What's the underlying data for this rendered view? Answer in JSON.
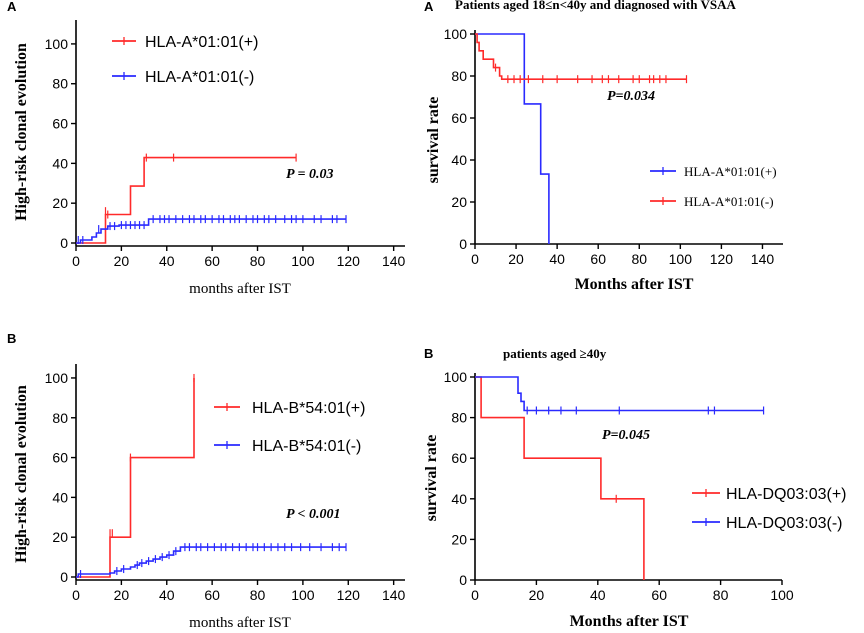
{
  "chart_data": [
    {
      "type": "line",
      "subtype": "step",
      "panel_label": "A",
      "title": "",
      "xlabel": "months after IST",
      "ylabel": "High-risk clonal evolution",
      "xlim": [
        0,
        145
      ],
      "ylim": [
        0,
        110
      ],
      "xticks": [
        0,
        20,
        40,
        60,
        80,
        100,
        120,
        140
      ],
      "yticks": [
        0,
        20,
        40,
        60,
        80,
        100
      ],
      "legend_position": "top-right",
      "annotation": "P = 0.03",
      "series": [
        {
          "name": "HLA-A*01:01(+)",
          "color": "#ff2a2a",
          "steps": [
            [
              0,
              0
            ],
            [
              13,
              14.3
            ],
            [
              24,
              28.6
            ],
            [
              30,
              42.9
            ],
            [
              97,
              42.9
            ]
          ],
          "censored": [
            [
              13,
              16
            ],
            [
              14,
              14.3
            ],
            [
              31,
              42.9
            ],
            [
              43,
              42.9
            ],
            [
              97,
              42.9
            ]
          ]
        },
        {
          "name": "HLA-A*01:01(-)",
          "color": "#2a2aff",
          "steps": [
            [
              0,
              0
            ],
            [
              2,
              1.5
            ],
            [
              7,
              3
            ],
            [
              9,
              5
            ],
            [
              11,
              7
            ],
            [
              14,
              8.5
            ],
            [
              19,
              9
            ],
            [
              32,
              12
            ],
            [
              119,
              12
            ]
          ],
          "censored": [
            [
              1,
              1.5
            ],
            [
              3,
              1.5
            ],
            [
              10,
              7
            ],
            [
              15,
              8.5
            ],
            [
              17,
              8.5
            ],
            [
              20,
              9
            ],
            [
              22,
              9
            ],
            [
              24,
              9
            ],
            [
              26,
              9
            ],
            [
              28,
              9
            ],
            [
              30,
              9
            ],
            [
              34,
              12
            ],
            [
              37,
              12
            ],
            [
              39,
              12
            ],
            [
              41,
              12
            ],
            [
              44,
              12
            ],
            [
              47,
              12
            ],
            [
              50,
              12
            ],
            [
              52,
              12
            ],
            [
              55,
              12
            ],
            [
              57,
              12
            ],
            [
              60,
              12
            ],
            [
              63,
              12
            ],
            [
              65,
              12
            ],
            [
              68,
              12
            ],
            [
              70,
              12
            ],
            [
              72,
              12
            ],
            [
              75,
              12
            ],
            [
              78,
              12
            ],
            [
              80,
              12
            ],
            [
              83,
              12
            ],
            [
              85,
              12
            ],
            [
              88,
              12
            ],
            [
              92,
              12
            ],
            [
              95,
              12
            ],
            [
              97,
              12
            ],
            [
              100,
              12
            ],
            [
              105,
              12
            ],
            [
              108,
              12
            ],
            [
              113,
              12
            ],
            [
              115,
              12
            ],
            [
              119,
              12
            ]
          ]
        }
      ]
    },
    {
      "type": "line",
      "subtype": "step",
      "panel_label": "A",
      "title": "Patients aged  18≤n<40y and diagnosed with VSAA",
      "xlabel": "Months after IST",
      "ylabel": "survival rate",
      "xlim": [
        0,
        150
      ],
      "ylim": [
        0,
        100
      ],
      "xticks": [
        0,
        20,
        40,
        60,
        80,
        100,
        120,
        140
      ],
      "yticks": [
        0,
        20,
        40,
        60,
        80,
        100
      ],
      "legend_position": "center-right",
      "annotation": "P=0.034",
      "series": [
        {
          "name": "HLA-A*01:01(+)",
          "color": "#2a2aff",
          "steps": [
            [
              0,
              100
            ],
            [
              24,
              66.7
            ],
            [
              32,
              33.3
            ],
            [
              36,
              0
            ]
          ],
          "censored": []
        },
        {
          "name": "HLA-A*01:01(-)",
          "color": "#ff2a2a",
          "steps": [
            [
              0,
              100
            ],
            [
              1,
              96
            ],
            [
              2,
              92
            ],
            [
              4,
              88
            ],
            [
              9,
              84
            ],
            [
              12,
              80
            ],
            [
              13,
              78.5
            ],
            [
              103,
              78.5
            ]
          ],
          "censored": [
            [
              10,
              84
            ],
            [
              16,
              78.5
            ],
            [
              19,
              78.5
            ],
            [
              22,
              78.5
            ],
            [
              26,
              78.5
            ],
            [
              33,
              78.5
            ],
            [
              40,
              78.5
            ],
            [
              50,
              78.5
            ],
            [
              57,
              78.5
            ],
            [
              62,
              78.5
            ],
            [
              65,
              78.5
            ],
            [
              70,
              78.5
            ],
            [
              77,
              78.5
            ],
            [
              80,
              78.5
            ],
            [
              85,
              78.5
            ],
            [
              87,
              78.5
            ],
            [
              90,
              78.5
            ],
            [
              93,
              78.5
            ],
            [
              103,
              78.5
            ]
          ]
        }
      ]
    },
    {
      "type": "line",
      "subtype": "step",
      "panel_label": "B",
      "title": "",
      "xlabel": "months after IST",
      "ylabel": "High-risk clonal evolution",
      "xlim": [
        0,
        145
      ],
      "ylim": [
        0,
        105
      ],
      "xticks": [
        0,
        20,
        40,
        60,
        80,
        100,
        120,
        140
      ],
      "yticks": [
        0,
        20,
        40,
        60,
        80,
        100
      ],
      "legend_position": "center-right",
      "annotation": "P < 0.001",
      "series": [
        {
          "name": "HLA-B*54:01(+)",
          "color": "#ff2a2a",
          "steps": [
            [
              0,
              0
            ],
            [
              15,
              20
            ],
            [
              24,
              60
            ],
            [
              52,
              100
            ]
          ],
          "censored": [
            [
              15,
              22
            ],
            [
              16,
              22
            ],
            [
              24,
              60
            ],
            [
              52,
              100
            ]
          ]
        },
        {
          "name": "HLA-B*54:01(-)",
          "color": "#2a2aff",
          "steps": [
            [
              0,
              0
            ],
            [
              1,
              1.5
            ],
            [
              4,
              1.5
            ],
            [
              15,
              2
            ],
            [
              17,
              3
            ],
            [
              20,
              4
            ],
            [
              24,
              5
            ],
            [
              26,
              6
            ],
            [
              28,
              7
            ],
            [
              31,
              8
            ],
            [
              34,
              9
            ],
            [
              37,
              10
            ],
            [
              40,
              11
            ],
            [
              43,
              13
            ],
            [
              46,
              15
            ],
            [
              119,
              15
            ]
          ],
          "censored": [
            [
              2,
              1.5
            ],
            [
              18,
              3
            ],
            [
              21,
              4
            ],
            [
              27,
              6
            ],
            [
              29,
              7
            ],
            [
              32,
              8
            ],
            [
              35,
              9
            ],
            [
              38,
              10
            ],
            [
              41,
              11
            ],
            [
              44,
              13
            ],
            [
              48,
              15
            ],
            [
              50,
              15
            ],
            [
              53,
              15
            ],
            [
              55,
              15
            ],
            [
              58,
              15
            ],
            [
              61,
              15
            ],
            [
              64,
              15
            ],
            [
              66,
              15
            ],
            [
              69,
              15
            ],
            [
              72,
              15
            ],
            [
              75,
              15
            ],
            [
              78,
              15
            ],
            [
              80,
              15
            ],
            [
              83,
              15
            ],
            [
              86,
              15
            ],
            [
              89,
              15
            ],
            [
              92,
              15
            ],
            [
              95,
              15
            ],
            [
              99,
              15
            ],
            [
              103,
              15
            ],
            [
              108,
              15
            ],
            [
              113,
              15
            ],
            [
              116,
              15
            ],
            [
              119,
              15
            ]
          ]
        }
      ]
    },
    {
      "type": "line",
      "subtype": "step",
      "panel_label": "B",
      "title": "patients aged ≥40y",
      "xlabel": "Months after IST",
      "ylabel": "survival rate",
      "xlim": [
        0,
        100
      ],
      "ylim": [
        0,
        100
      ],
      "xticks": [
        0,
        20,
        40,
        60,
        80,
        100
      ],
      "yticks": [
        0,
        20,
        40,
        60,
        80,
        100
      ],
      "legend_position": "bottom-right",
      "annotation": "P=0.045",
      "series": [
        {
          "name": "HLA-DQ03:03(+)",
          "color": "#ff2a2a",
          "steps": [
            [
              0,
              100
            ],
            [
              2,
              80
            ],
            [
              16,
              60
            ],
            [
              41,
              40
            ],
            [
              55,
              0
            ]
          ],
          "censored": [
            [
              46,
              40
            ]
          ]
        },
        {
          "name": "HLA-DQ03:03(-)",
          "color": "#2a2aff",
          "steps": [
            [
              0,
              100
            ],
            [
              14,
              92
            ],
            [
              15,
              88
            ],
            [
              16,
              83.5
            ],
            [
              94,
              83.5
            ]
          ],
          "censored": [
            [
              17,
              83.5
            ],
            [
              20,
              83.5
            ],
            [
              24,
              83.5
            ],
            [
              28,
              83.5
            ],
            [
              33,
              83.5
            ],
            [
              47,
              83.5
            ],
            [
              76,
              83.5
            ],
            [
              78,
              83.5
            ],
            [
              94,
              83.5
            ]
          ]
        }
      ]
    }
  ]
}
